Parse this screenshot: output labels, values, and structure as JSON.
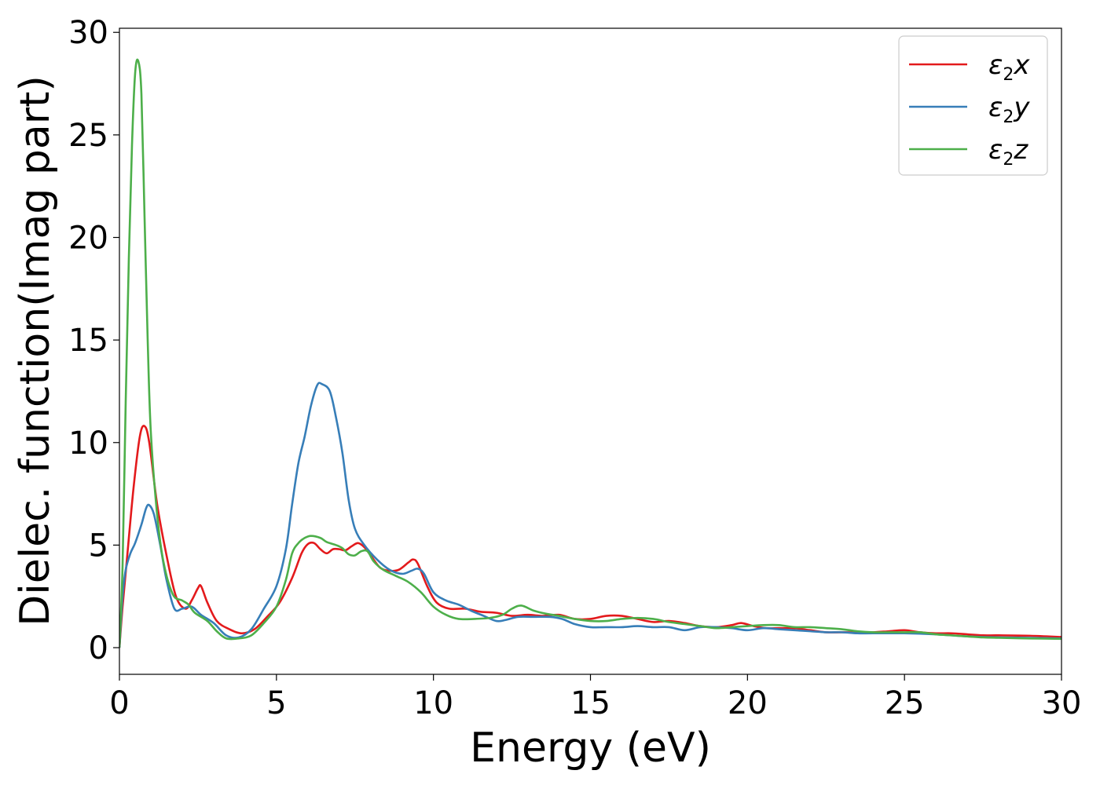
{
  "chart_data": {
    "type": "line",
    "xlabel": "Energy (eV)",
    "ylabel": "Dielec. function(Imag part)",
    "xlim": [
      0,
      30
    ],
    "ylim": [
      -1.3,
      30.2
    ],
    "xticks": [
      0,
      5,
      10,
      15,
      20,
      25,
      30
    ],
    "yticks": [
      0,
      5,
      10,
      15,
      20,
      25,
      30
    ],
    "xtick_labels": [
      "0",
      "5",
      "10",
      "15",
      "20",
      "25",
      "30"
    ],
    "ytick_labels": [
      "0",
      "5",
      "10",
      "15",
      "20",
      "25",
      "30"
    ],
    "legend_position": "top-right",
    "series": [
      {
        "name": "ε2x",
        "legend_symbol": "ε",
        "legend_sub": "2",
        "legend_var": "x",
        "color": "#e31a1c",
        "points": [
          [
            0,
            0
          ],
          [
            0.1,
            2.0
          ],
          [
            0.25,
            4.5
          ],
          [
            0.45,
            7.8
          ],
          [
            0.65,
            10.3
          ],
          [
            0.8,
            10.8
          ],
          [
            0.95,
            10.0
          ],
          [
            1.2,
            7.0
          ],
          [
            1.5,
            4.5
          ],
          [
            1.8,
            2.5
          ],
          [
            2.1,
            1.9
          ],
          [
            2.3,
            2.3
          ],
          [
            2.5,
            2.9
          ],
          [
            2.6,
            3.0
          ],
          [
            2.8,
            2.2
          ],
          [
            3.1,
            1.3
          ],
          [
            3.5,
            0.9
          ],
          [
            3.9,
            0.7
          ],
          [
            4.3,
            0.9
          ],
          [
            4.7,
            1.5
          ],
          [
            5.1,
            2.2
          ],
          [
            5.5,
            3.4
          ],
          [
            5.8,
            4.6
          ],
          [
            6.0,
            5.05
          ],
          [
            6.2,
            5.1
          ],
          [
            6.4,
            4.8
          ],
          [
            6.6,
            4.6
          ],
          [
            6.8,
            4.8
          ],
          [
            7.0,
            4.8
          ],
          [
            7.2,
            4.75
          ],
          [
            7.4,
            4.95
          ],
          [
            7.6,
            5.1
          ],
          [
            7.8,
            4.9
          ],
          [
            8.0,
            4.5
          ],
          [
            8.3,
            3.9
          ],
          [
            8.6,
            3.75
          ],
          [
            8.9,
            3.8
          ],
          [
            9.2,
            4.15
          ],
          [
            9.35,
            4.3
          ],
          [
            9.5,
            4.1
          ],
          [
            9.8,
            3.0
          ],
          [
            10.1,
            2.2
          ],
          [
            10.5,
            1.9
          ],
          [
            11.0,
            1.9
          ],
          [
            11.5,
            1.75
          ],
          [
            12.0,
            1.7
          ],
          [
            12.5,
            1.55
          ],
          [
            13.0,
            1.6
          ],
          [
            13.5,
            1.55
          ],
          [
            14.0,
            1.6
          ],
          [
            14.5,
            1.4
          ],
          [
            15.0,
            1.4
          ],
          [
            15.5,
            1.55
          ],
          [
            16.0,
            1.55
          ],
          [
            16.5,
            1.4
          ],
          [
            17.0,
            1.25
          ],
          [
            17.5,
            1.3
          ],
          [
            18.0,
            1.2
          ],
          [
            18.5,
            1.05
          ],
          [
            19.0,
            1.0
          ],
          [
            19.5,
            1.1
          ],
          [
            19.8,
            1.2
          ],
          [
            20.2,
            1.05
          ],
          [
            20.6,
            0.95
          ],
          [
            21.0,
            0.95
          ],
          [
            21.5,
            0.95
          ],
          [
            22.0,
            0.85
          ],
          [
            22.5,
            0.75
          ],
          [
            23.0,
            0.75
          ],
          [
            23.5,
            0.75
          ],
          [
            24.0,
            0.75
          ],
          [
            24.5,
            0.8
          ],
          [
            25.0,
            0.85
          ],
          [
            25.5,
            0.75
          ],
          [
            26.0,
            0.7
          ],
          [
            26.5,
            0.7
          ],
          [
            27.0,
            0.65
          ],
          [
            27.5,
            0.6
          ],
          [
            28.0,
            0.6
          ],
          [
            29.0,
            0.58
          ],
          [
            30.0,
            0.52
          ]
        ]
      },
      {
        "name": "ε2y",
        "legend_symbol": "ε",
        "legend_sub": "2",
        "legend_var": "y",
        "color": "#377eb8",
        "points": [
          [
            0,
            0
          ],
          [
            0.1,
            2.5
          ],
          [
            0.2,
            3.8
          ],
          [
            0.35,
            4.6
          ],
          [
            0.5,
            5.1
          ],
          [
            0.7,
            6.0
          ],
          [
            0.85,
            6.8
          ],
          [
            0.95,
            6.95
          ],
          [
            1.1,
            6.5
          ],
          [
            1.3,
            5.0
          ],
          [
            1.5,
            3.3
          ],
          [
            1.75,
            1.9
          ],
          [
            2.0,
            1.9
          ],
          [
            2.3,
            2.0
          ],
          [
            2.6,
            1.6
          ],
          [
            3.0,
            1.2
          ],
          [
            3.4,
            0.6
          ],
          [
            3.8,
            0.5
          ],
          [
            4.2,
            0.9
          ],
          [
            4.6,
            1.9
          ],
          [
            5.0,
            3.0
          ],
          [
            5.3,
            4.8
          ],
          [
            5.5,
            7.0
          ],
          [
            5.7,
            9.0
          ],
          [
            5.9,
            10.3
          ],
          [
            6.1,
            11.8
          ],
          [
            6.3,
            12.8
          ],
          [
            6.45,
            12.85
          ],
          [
            6.7,
            12.5
          ],
          [
            6.9,
            11.2
          ],
          [
            7.1,
            9.5
          ],
          [
            7.3,
            7.2
          ],
          [
            7.5,
            5.8
          ],
          [
            7.8,
            5.0
          ],
          [
            8.2,
            4.3
          ],
          [
            8.6,
            3.8
          ],
          [
            9.0,
            3.6
          ],
          [
            9.3,
            3.75
          ],
          [
            9.5,
            3.85
          ],
          [
            9.7,
            3.6
          ],
          [
            10.0,
            2.7
          ],
          [
            10.4,
            2.3
          ],
          [
            10.8,
            2.1
          ],
          [
            11.2,
            1.8
          ],
          [
            11.6,
            1.55
          ],
          [
            12.0,
            1.3
          ],
          [
            12.3,
            1.35
          ],
          [
            12.7,
            1.5
          ],
          [
            13.2,
            1.5
          ],
          [
            13.7,
            1.5
          ],
          [
            14.1,
            1.4
          ],
          [
            14.5,
            1.15
          ],
          [
            15.0,
            1.0
          ],
          [
            15.5,
            1.0
          ],
          [
            16.0,
            1.0
          ],
          [
            16.5,
            1.05
          ],
          [
            17.0,
            1.0
          ],
          [
            17.5,
            1.0
          ],
          [
            18.0,
            0.85
          ],
          [
            18.5,
            1.0
          ],
          [
            19.0,
            1.0
          ],
          [
            19.5,
            0.95
          ],
          [
            20.0,
            0.85
          ],
          [
            20.5,
            0.95
          ],
          [
            21.0,
            0.9
          ],
          [
            21.5,
            0.85
          ],
          [
            22.0,
            0.8
          ],
          [
            22.5,
            0.75
          ],
          [
            23.0,
            0.75
          ],
          [
            23.5,
            0.7
          ],
          [
            24.0,
            0.7
          ],
          [
            25.0,
            0.7
          ],
          [
            26.0,
            0.65
          ],
          [
            27.0,
            0.55
          ],
          [
            28.0,
            0.5
          ],
          [
            29.0,
            0.48
          ],
          [
            30.0,
            0.45
          ]
        ]
      },
      {
        "name": "ε2z",
        "legend_symbol": "ε",
        "legend_sub": "2",
        "legend_var": "z",
        "color": "#4daf4a",
        "points": [
          [
            0,
            0
          ],
          [
            0.1,
            4.0
          ],
          [
            0.2,
            12.0
          ],
          [
            0.3,
            19.0
          ],
          [
            0.4,
            24.5
          ],
          [
            0.5,
            28.0
          ],
          [
            0.6,
            28.6
          ],
          [
            0.7,
            27.0
          ],
          [
            0.8,
            21.0
          ],
          [
            0.9,
            15.0
          ],
          [
            1.0,
            10.5
          ],
          [
            1.2,
            6.5
          ],
          [
            1.4,
            4.2
          ],
          [
            1.7,
            2.6
          ],
          [
            2.0,
            2.3
          ],
          [
            2.2,
            2.1
          ],
          [
            2.4,
            1.7
          ],
          [
            2.8,
            1.3
          ],
          [
            3.1,
            0.8
          ],
          [
            3.4,
            0.45
          ],
          [
            3.8,
            0.45
          ],
          [
            4.2,
            0.6
          ],
          [
            4.6,
            1.2
          ],
          [
            5.0,
            2.0
          ],
          [
            5.3,
            3.3
          ],
          [
            5.5,
            4.6
          ],
          [
            5.7,
            5.1
          ],
          [
            5.9,
            5.35
          ],
          [
            6.1,
            5.45
          ],
          [
            6.4,
            5.35
          ],
          [
            6.6,
            5.15
          ],
          [
            6.9,
            5.0
          ],
          [
            7.1,
            4.85
          ],
          [
            7.3,
            4.55
          ],
          [
            7.5,
            4.5
          ],
          [
            7.7,
            4.7
          ],
          [
            7.9,
            4.7
          ],
          [
            8.1,
            4.2
          ],
          [
            8.4,
            3.8
          ],
          [
            8.8,
            3.5
          ],
          [
            9.2,
            3.2
          ],
          [
            9.6,
            2.7
          ],
          [
            10.0,
            2.0
          ],
          [
            10.4,
            1.6
          ],
          [
            10.8,
            1.4
          ],
          [
            11.3,
            1.4
          ],
          [
            11.8,
            1.45
          ],
          [
            12.2,
            1.6
          ],
          [
            12.5,
            1.9
          ],
          [
            12.8,
            2.05
          ],
          [
            13.2,
            1.8
          ],
          [
            13.6,
            1.65
          ],
          [
            14.0,
            1.55
          ],
          [
            14.5,
            1.4
          ],
          [
            15.0,
            1.3
          ],
          [
            15.5,
            1.3
          ],
          [
            16.0,
            1.4
          ],
          [
            16.5,
            1.45
          ],
          [
            17.0,
            1.4
          ],
          [
            17.5,
            1.25
          ],
          [
            18.0,
            1.15
          ],
          [
            18.5,
            1.05
          ],
          [
            19.0,
            0.95
          ],
          [
            19.5,
            1.0
          ],
          [
            20.0,
            1.05
          ],
          [
            20.5,
            1.1
          ],
          [
            21.0,
            1.1
          ],
          [
            21.5,
            1.0
          ],
          [
            22.0,
            1.0
          ],
          [
            22.5,
            0.95
          ],
          [
            23.0,
            0.9
          ],
          [
            23.5,
            0.8
          ],
          [
            24.0,
            0.75
          ],
          [
            24.5,
            0.75
          ],
          [
            25.0,
            0.75
          ],
          [
            25.5,
            0.75
          ],
          [
            26.0,
            0.65
          ],
          [
            26.5,
            0.6
          ],
          [
            27.0,
            0.55
          ],
          [
            27.5,
            0.5
          ],
          [
            28.0,
            0.48
          ],
          [
            29.0,
            0.45
          ],
          [
            30.0,
            0.43
          ]
        ]
      }
    ]
  }
}
